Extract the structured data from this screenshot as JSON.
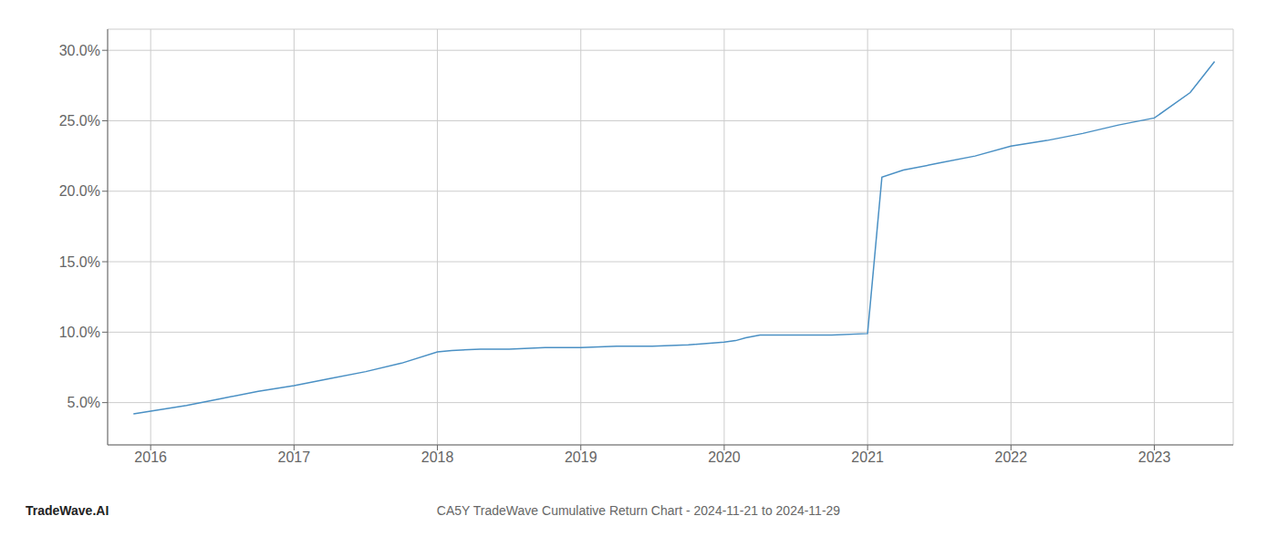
{
  "chart_data": {
    "type": "line",
    "title": "CA5Y TradeWave Cumulative Return Chart - 2024-11-21 to 2024-11-29",
    "annotations": [
      "TradeWave.AI"
    ],
    "x": [
      2015.88,
      2016.0,
      2016.25,
      2016.5,
      2016.75,
      2017.0,
      2017.25,
      2017.5,
      2017.75,
      2018.0,
      2018.1,
      2018.3,
      2018.5,
      2018.75,
      2019.0,
      2019.25,
      2019.5,
      2019.75,
      2020.0,
      2020.08,
      2020.15,
      2020.25,
      2020.5,
      2020.75,
      2021.0,
      2021.1,
      2021.25,
      2021.5,
      2021.75,
      2022.0,
      2022.25,
      2022.5,
      2022.75,
      2023.0,
      2023.25,
      2023.42
    ],
    "values": [
      0.042,
      0.044,
      0.048,
      0.053,
      0.058,
      0.062,
      0.067,
      0.072,
      0.078,
      0.086,
      0.087,
      0.088,
      0.088,
      0.089,
      0.089,
      0.09,
      0.09,
      0.091,
      0.093,
      0.094,
      0.096,
      0.098,
      0.098,
      0.098,
      0.099,
      0.21,
      0.215,
      0.22,
      0.225,
      0.232,
      0.236,
      0.241,
      0.247,
      0.252,
      0.27,
      0.292
    ],
    "color": "#4a90c4",
    "xlim": [
      2015.7,
      2023.55
    ],
    "ylim": [
      0.02,
      0.315
    ],
    "xticks": [
      2016,
      2017,
      2018,
      2019,
      2020,
      2021,
      2022,
      2023
    ],
    "yticks": [
      {
        "value": 0.05,
        "label": "5.0%"
      },
      {
        "value": 0.1,
        "label": "10.0%"
      },
      {
        "value": 0.15,
        "label": "15.0%"
      },
      {
        "value": 0.2,
        "label": "20.0%"
      },
      {
        "value": 0.25,
        "label": "25.0%"
      },
      {
        "value": 0.3,
        "label": "30.0%"
      }
    ],
    "grid": true
  }
}
